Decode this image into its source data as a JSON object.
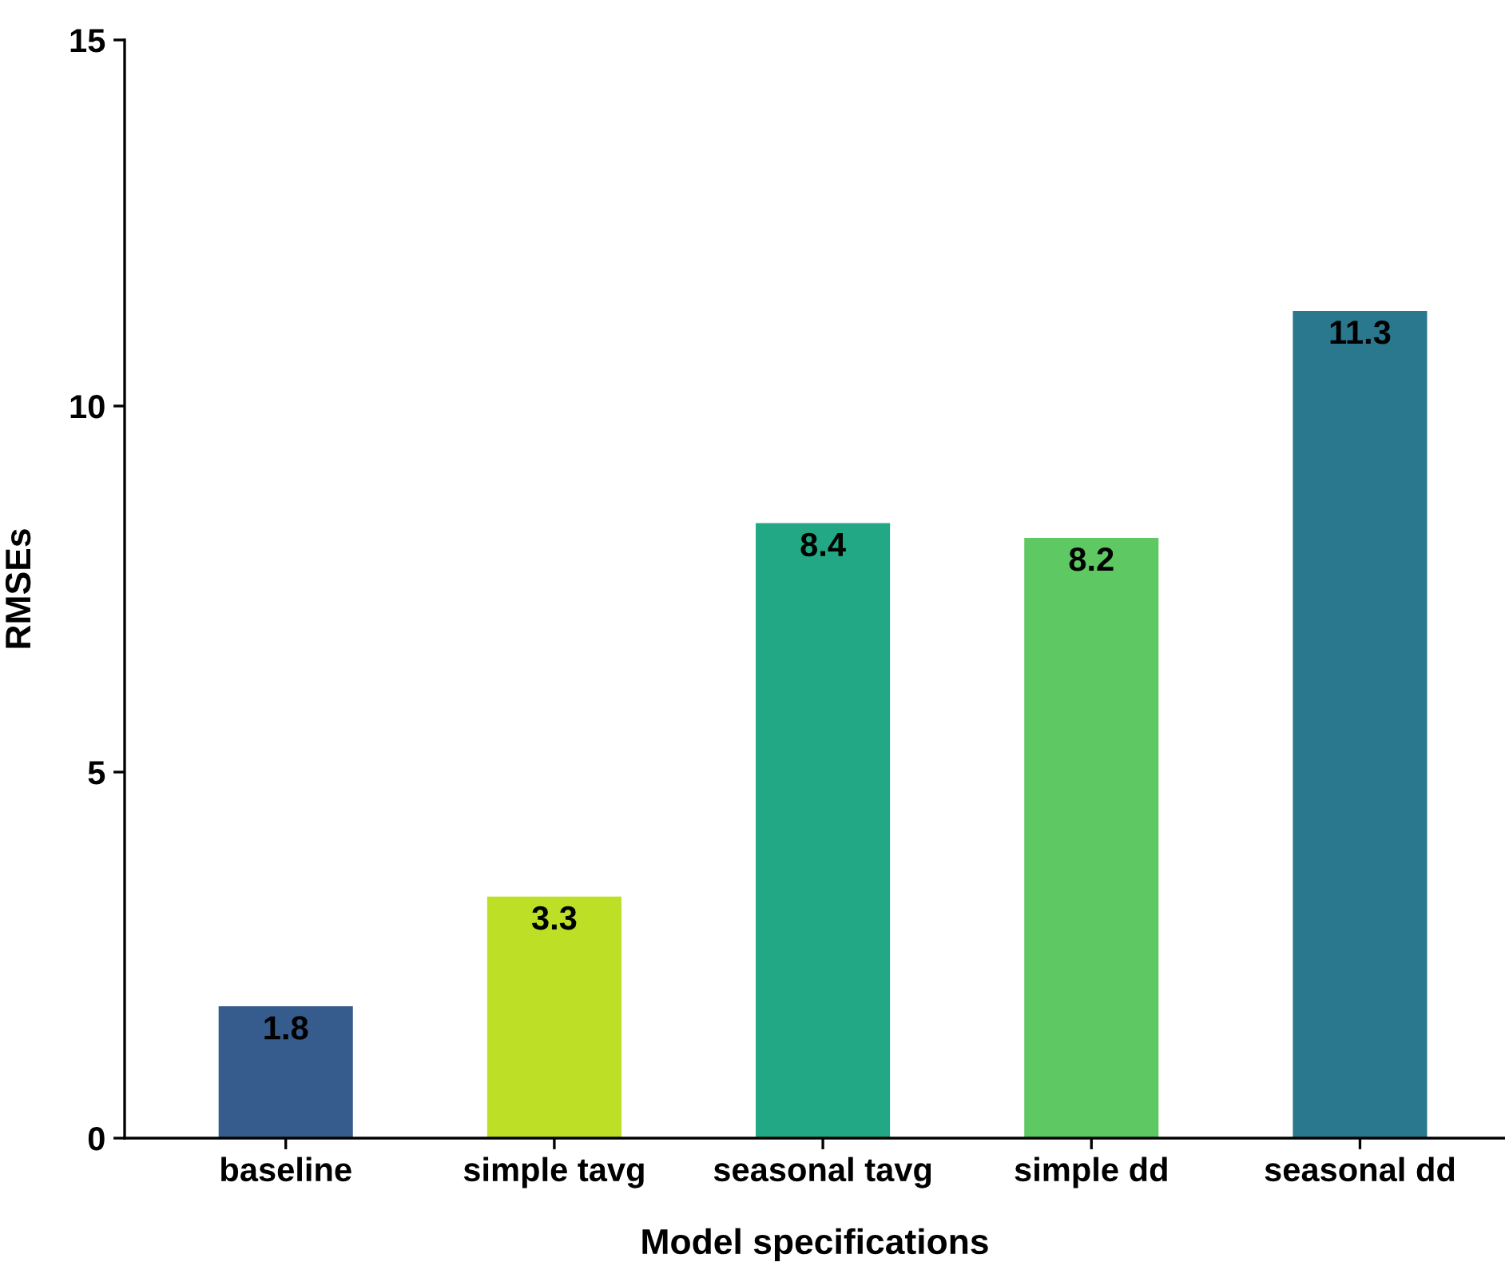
{
  "chart_data": {
    "type": "bar",
    "xlabel": "Model specifications",
    "ylabel": "RMSEs",
    "categories": [
      "baseline",
      "simple tavg",
      "seasonal tavg",
      "simple dd",
      "seasonal dd"
    ],
    "values": [
      1.8,
      3.3,
      8.4,
      8.2,
      11.3
    ],
    "colors": [
      "#365c8d",
      "#bddf26",
      "#22a884",
      "#5ec962",
      "#2a788e"
    ],
    "ylim": [
      0,
      15
    ],
    "yticks": [
      0,
      5,
      10,
      15
    ],
    "grid": false,
    "legend": false,
    "data_labels": true
  }
}
